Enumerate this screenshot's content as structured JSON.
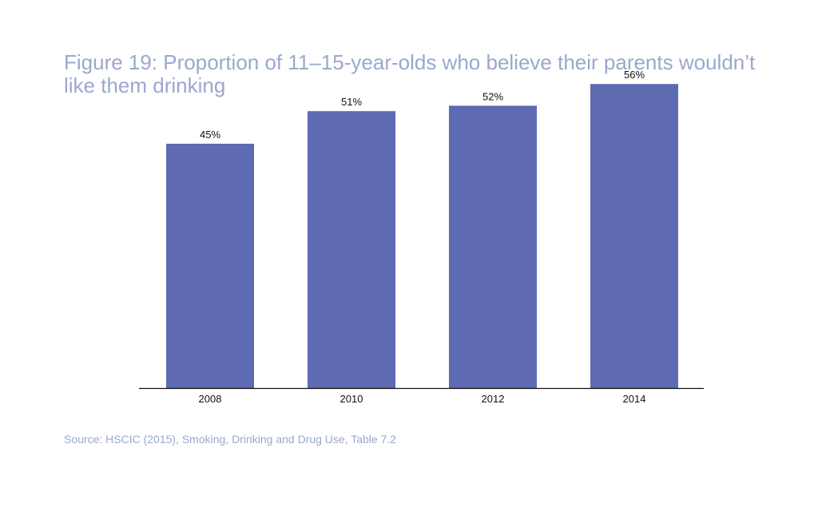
{
  "title": {
    "line1": "Figure 19: Proportion of 11–15-year-olds who believe their parents wouldn’t",
    "line2": "like them drinking"
  },
  "source": "Source: HSCIC (2015), Smoking, Drinking and Drug Use, Table 7.2",
  "colors": {
    "bar": "#5e6ab2",
    "title": "#9aa8cd",
    "axis": "#111111"
  },
  "chart_data": {
    "type": "bar",
    "title": "Figure 19: Proportion of 11–15-year-olds who believe their parents wouldn’t like them drinking",
    "categories": [
      "2008",
      "2010",
      "2012",
      "2014"
    ],
    "values": [
      45,
      51,
      52,
      56
    ],
    "value_labels": [
      "45%",
      "51%",
      "52%",
      "56%"
    ],
    "xlabel": "",
    "ylabel": "",
    "ylim": [
      0,
      60
    ],
    "grid": false,
    "legend": "none"
  }
}
